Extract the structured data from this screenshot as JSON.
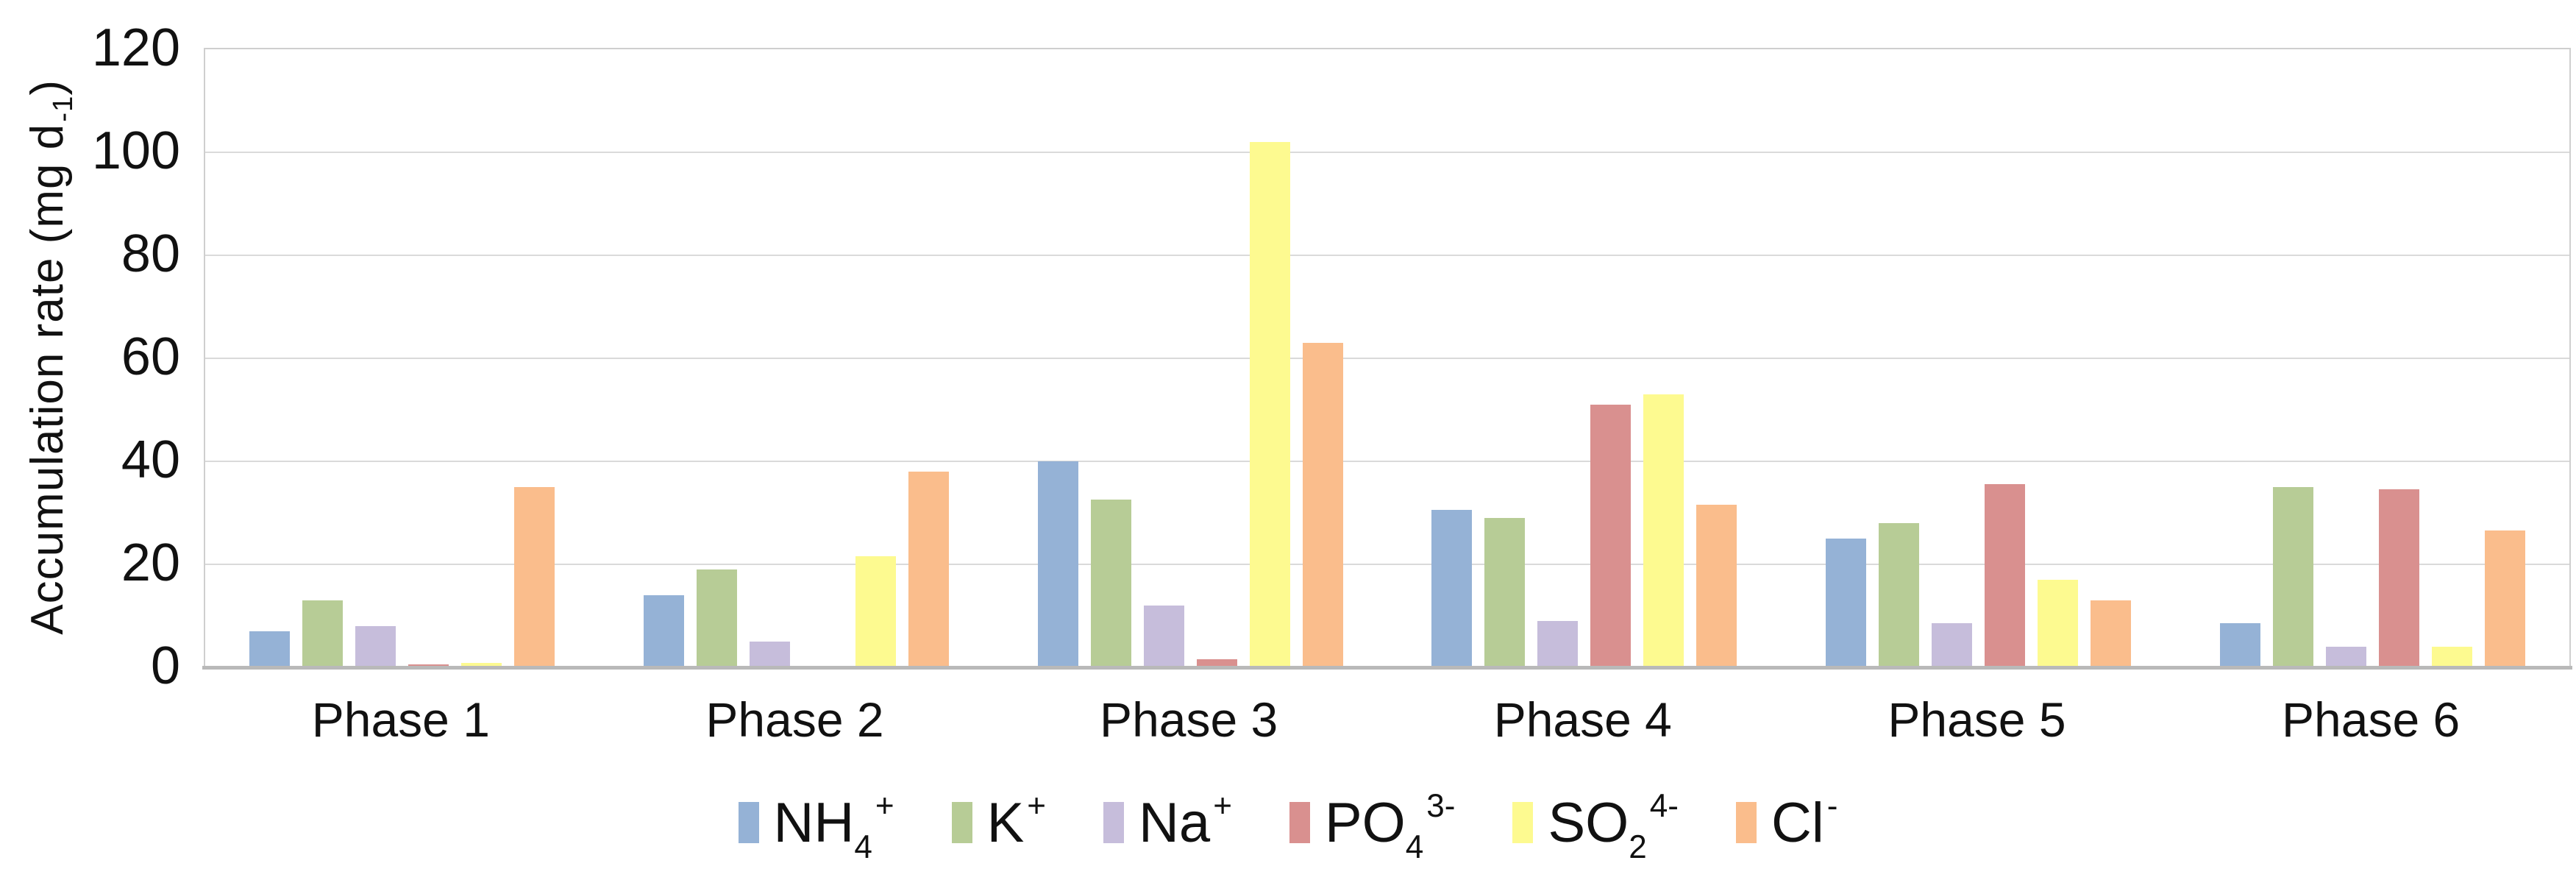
{
  "chart_data": {
    "type": "bar",
    "title": "",
    "ylabel": "Accumulation rate (mg d⁻¹)",
    "ylabel_parts": {
      "prefix": "Accumulation rate (mg d",
      "sup": "-1",
      "suffix": ")"
    },
    "xlabel": "",
    "categories": [
      "Phase 1",
      "Phase 2",
      "Phase 3",
      "Phase 4",
      "Phase 5",
      "Phase 6"
    ],
    "ylim": [
      0,
      120
    ],
    "ytick_step": 20,
    "yticks": [
      "0",
      "20",
      "40",
      "60",
      "80",
      "100",
      "120"
    ],
    "grid": true,
    "legend_position": "bottom",
    "series": [
      {
        "name": "NH4+",
        "label_main": "NH",
        "label_sub": "4",
        "label_sup": "+",
        "color": "#95B2D6",
        "values": [
          7,
          14,
          40,
          30.5,
          25,
          8.5
        ]
      },
      {
        "name": "K+",
        "label_main": "K",
        "label_sub": "",
        "label_sup": "+",
        "color": "#B7CC96",
        "values": [
          13,
          19,
          32.5,
          29,
          28,
          35
        ]
      },
      {
        "name": "Na+",
        "label_main": "Na",
        "label_sub": "",
        "label_sup": "+",
        "color": "#C6BDDB",
        "values": [
          8,
          5,
          12,
          9,
          8.5,
          4
        ]
      },
      {
        "name": "PO43-",
        "label_main": "PO",
        "label_sub": "4",
        "label_sup": "3-",
        "color": "#D9908F",
        "values": [
          0.5,
          0,
          1.5,
          51,
          35.5,
          34.5
        ]
      },
      {
        "name": "SO24-",
        "label_main": "SO",
        "label_sub": "2",
        "label_sup": "4-",
        "color": "#FDFA90",
        "values": [
          0.8,
          21.5,
          102,
          53,
          17,
          4
        ]
      },
      {
        "name": "Cl-",
        "label_main": "Cl",
        "label_sub": "",
        "label_sup": "-",
        "color": "#FABD8C",
        "values": [
          35,
          38,
          63,
          31.5,
          13,
          26.5
        ]
      }
    ],
    "colors": {
      "gridline": "#DADADA",
      "plot_border": "#CFCFCF",
      "baseline": "#B9B9B9",
      "text": "#111111"
    }
  }
}
